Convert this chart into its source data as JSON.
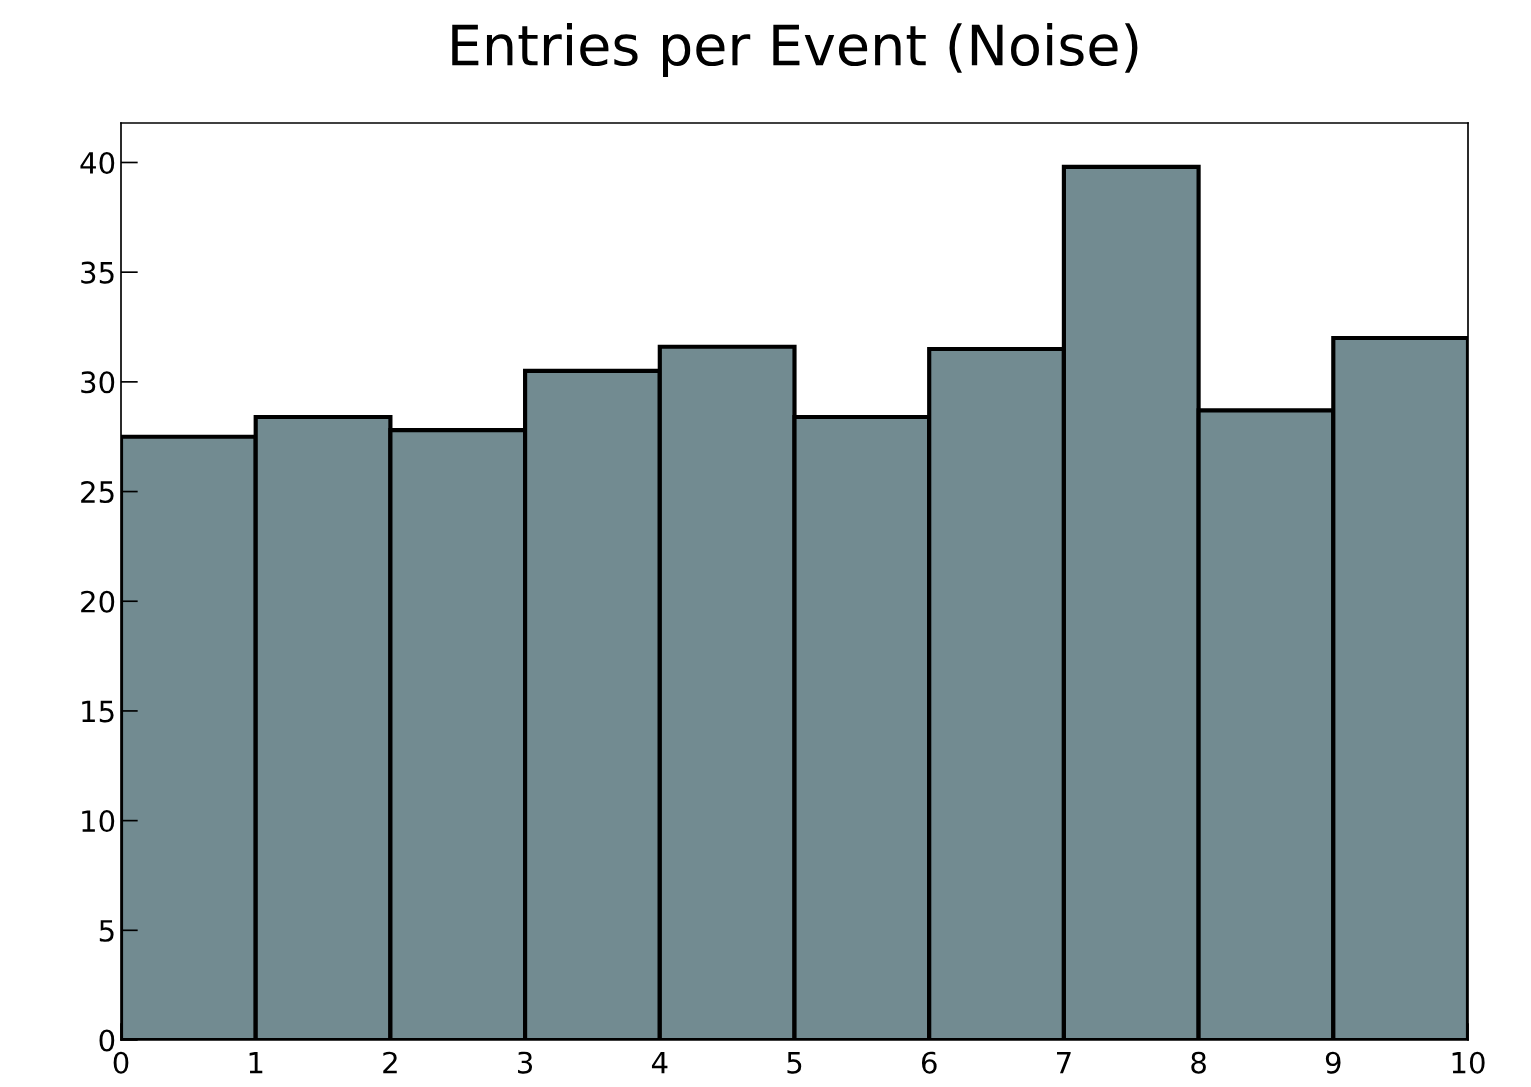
{
  "chart_data": {
    "type": "histogram",
    "title": "Entries per Event (Noise)",
    "bins": [
      0,
      1,
      2,
      3,
      4,
      5,
      6,
      7,
      8,
      9,
      10
    ],
    "values": [
      27.5,
      28.4,
      27.8,
      30.5,
      31.6,
      28.4,
      31.5,
      39.8,
      28.7,
      32.0
    ],
    "color": "#728b91",
    "xlim": [
      0,
      10
    ],
    "xticks": [
      0,
      1,
      2,
      3,
      4,
      5,
      6,
      7,
      8,
      9,
      10
    ],
    "ylim": [
      0,
      41.8
    ],
    "yticks": [
      0,
      5,
      10,
      15,
      20,
      25,
      30,
      35,
      40
    ],
    "grid": false
  }
}
